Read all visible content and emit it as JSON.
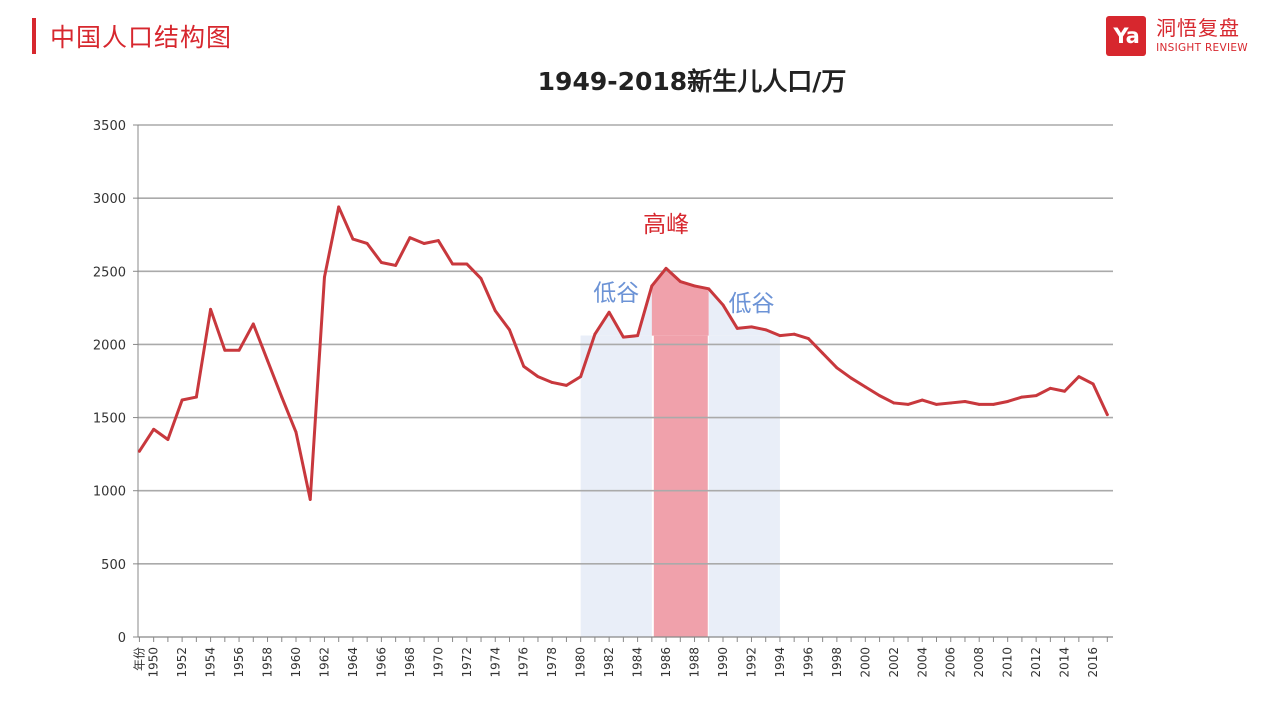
{
  "header": {
    "title": "中国人口结构图",
    "brand": {
      "logo_text": "Ya",
      "name": "洞悟复盘",
      "subtitle": "INSIGHT REVIEW"
    }
  },
  "colors": {
    "accent": "#d7272e",
    "line": "#c8383d",
    "peak_fill": "#f0a1ab",
    "trough_fill": "#e9eef8",
    "annotation_blue": "#6c93d6",
    "annotation_red": "#d7272e",
    "grid": "#aaaaaa"
  },
  "chart_data": {
    "type": "line",
    "title": "1949-2018新生儿人口/万",
    "xlabel": "",
    "ylabel": "",
    "ylim": [
      0,
      3500
    ],
    "yticks": [
      0,
      500,
      1000,
      1500,
      2000,
      2500,
      3000,
      3500
    ],
    "x_first_label": "年份",
    "xtick_labels": [
      "1950",
      "1952",
      "1954",
      "1956",
      "1958",
      "1960",
      "1962",
      "1964",
      "1966",
      "1968",
      "1970",
      "1972",
      "1974",
      "1976",
      "1978",
      "1980",
      "1982",
      "1984",
      "1986",
      "1988",
      "1990",
      "1992",
      "1994",
      "1996",
      "1998",
      "2000",
      "2002",
      "2004",
      "2006",
      "2008",
      "2010",
      "2012",
      "2014",
      "2016"
    ],
    "grid": true,
    "legend": "none",
    "x": [
      1949,
      1950,
      1951,
      1952,
      1953,
      1954,
      1955,
      1956,
      1957,
      1958,
      1959,
      1960,
      1961,
      1962,
      1963,
      1964,
      1965,
      1966,
      1967,
      1968,
      1969,
      1970,
      1971,
      1972,
      1973,
      1974,
      1975,
      1976,
      1977,
      1978,
      1979,
      1980,
      1981,
      1982,
      1983,
      1984,
      1985,
      1986,
      1987,
      1988,
      1989,
      1990,
      1991,
      1992,
      1993,
      1994,
      1995,
      1996,
      1997,
      1998,
      1999,
      2000,
      2001,
      2002,
      2003,
      2004,
      2005,
      2006,
      2007,
      2008,
      2009,
      2010,
      2011,
      2012,
      2013,
      2014,
      2015,
      2016,
      2017
    ],
    "values": [
      1270,
      1420,
      1350,
      1620,
      1640,
      2240,
      1960,
      1960,
      2140,
      1890,
      1640,
      1400,
      940,
      2460,
      2940,
      2720,
      2690,
      2560,
      2540,
      2730,
      2690,
      2710,
      2550,
      2550,
      2450,
      2230,
      2100,
      1850,
      1780,
      1740,
      1720,
      1780,
      2070,
      2220,
      2050,
      2060,
      2400,
      2520,
      2430,
      2400,
      2380,
      2270,
      2110,
      2120,
      2100,
      2060,
      2070,
      2040,
      1940,
      1840,
      1770,
      1710,
      1650,
      1600,
      1590,
      1620,
      1590,
      1600,
      1610,
      1590,
      1590,
      1610,
      1640,
      1650,
      1700,
      1680,
      1780,
      1730,
      1520
    ],
    "annotations": [
      {
        "text": "低谷",
        "x": 1982.5,
        "y": 2300,
        "color": "blue"
      },
      {
        "text": "高峰",
        "x": 1986,
        "y": 2770,
        "color": "red"
      },
      {
        "text": "低谷",
        "x": 1992,
        "y": 2230,
        "color": "blue"
      }
    ],
    "highlight_bands": [
      {
        "type": "trough",
        "x_range": [
          1980,
          1985
        ]
      },
      {
        "type": "peak",
        "x_range": [
          1985,
          1989
        ]
      },
      {
        "type": "trough",
        "x_range": [
          1989,
          1994
        ]
      }
    ]
  }
}
